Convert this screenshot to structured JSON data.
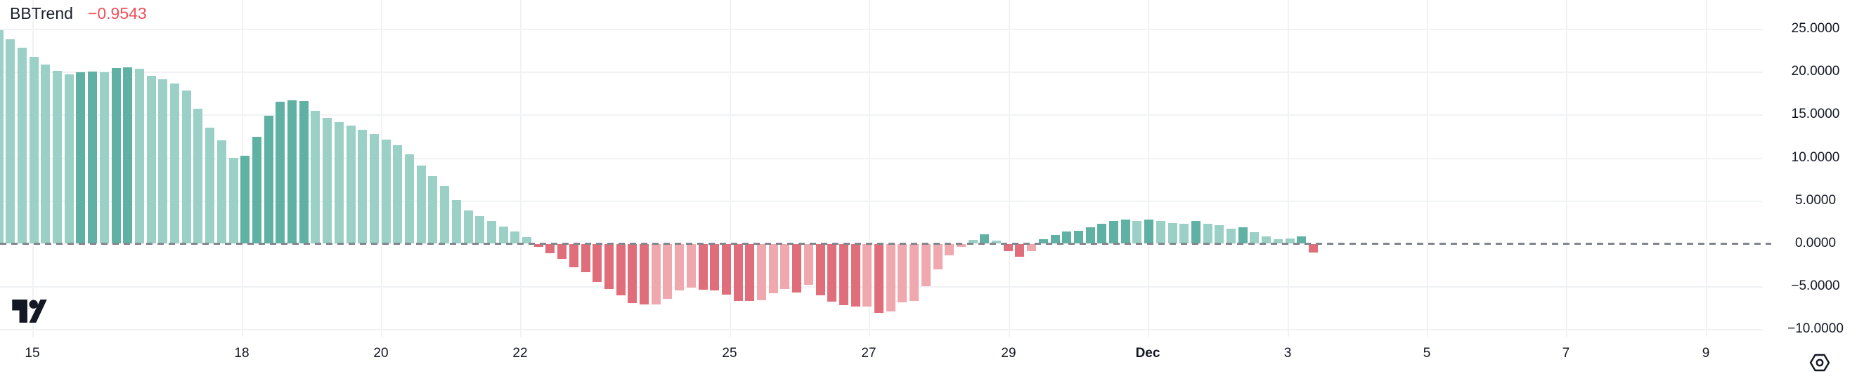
{
  "indicator": {
    "name": "BBTrend",
    "value": "−0.9543"
  },
  "colors": {
    "background": "#ffffff",
    "title_text": "#1a1f2b",
    "value_text": "#ef4e5b",
    "axis_text": "#131722",
    "grid": "#f0f2f4",
    "zero_line": "#83868e",
    "logo": "#141824",
    "bar_teal_strong": "#5fb1a4",
    "bar_teal_light": "#9ad0c6",
    "bar_red_strong": "#e06e7a",
    "bar_red_light": "#efa8ae"
  },
  "icons": {
    "settings": "hexagon-gear-icon",
    "logo": "tradingview-logo"
  },
  "chart_data": {
    "type": "bar",
    "title": "BBTrend",
    "current_value": -0.9543,
    "ylim": [
      -10.85,
      28.35
    ],
    "grid": true,
    "zero_line_style": "dashed",
    "legend_position": "top-left",
    "y_ticks": [
      {
        "value": 25,
        "label": "25.0000"
      },
      {
        "value": 20,
        "label": "20.0000"
      },
      {
        "value": 15,
        "label": "15.0000"
      },
      {
        "value": 10,
        "label": "10.0000"
      },
      {
        "value": 5,
        "label": "5.0000"
      },
      {
        "value": 0,
        "label": "0.0000"
      },
      {
        "value": -5,
        "label": "−5.0000"
      },
      {
        "value": -10,
        "label": "−10.0000"
      }
    ],
    "x_ticks": [
      {
        "label": "15",
        "day_offset": 0,
        "bold": false
      },
      {
        "label": "18",
        "day_offset": 3,
        "bold": false
      },
      {
        "label": "20",
        "day_offset": 5,
        "bold": false
      },
      {
        "label": "22",
        "day_offset": 7,
        "bold": false
      },
      {
        "label": "25",
        "day_offset": 10,
        "bold": false
      },
      {
        "label": "27",
        "day_offset": 12,
        "bold": false
      },
      {
        "label": "29",
        "day_offset": 14,
        "bold": false
      },
      {
        "label": "Dec",
        "day_offset": 16,
        "bold": true
      },
      {
        "label": "3",
        "day_offset": 18,
        "bold": false
      },
      {
        "label": "5",
        "day_offset": 20,
        "bold": false
      },
      {
        "label": "7",
        "day_offset": 22,
        "bold": false
      },
      {
        "label": "9",
        "day_offset": 24,
        "bold": false
      }
    ],
    "shade_codes": {
      "t": "teal-strong",
      "T": "teal-light",
      "r": "red-strong",
      "R": "red-light"
    },
    "bars": [
      [
        24.8,
        "T"
      ],
      [
        23.8,
        "T"
      ],
      [
        22.8,
        "T"
      ],
      [
        21.7,
        "T"
      ],
      [
        20.8,
        "T"
      ],
      [
        20.1,
        "T"
      ],
      [
        19.7,
        "T"
      ],
      [
        19.9,
        "t"
      ],
      [
        20.0,
        "t"
      ],
      [
        19.9,
        "T"
      ],
      [
        20.4,
        "t"
      ],
      [
        20.5,
        "t"
      ],
      [
        20.3,
        "T"
      ],
      [
        19.5,
        "T"
      ],
      [
        19.1,
        "T"
      ],
      [
        18.6,
        "T"
      ],
      [
        17.8,
        "T"
      ],
      [
        15.7,
        "T"
      ],
      [
        13.5,
        "T"
      ],
      [
        12.0,
        "T"
      ],
      [
        10.0,
        "T"
      ],
      [
        10.2,
        "t"
      ],
      [
        12.4,
        "t"
      ],
      [
        14.9,
        "t"
      ],
      [
        16.5,
        "t"
      ],
      [
        16.7,
        "t"
      ],
      [
        16.6,
        "t"
      ],
      [
        15.4,
        "T"
      ],
      [
        14.6,
        "T"
      ],
      [
        14.1,
        "T"
      ],
      [
        13.7,
        "T"
      ],
      [
        13.2,
        "T"
      ],
      [
        12.7,
        "T"
      ],
      [
        12.1,
        "T"
      ],
      [
        11.4,
        "T"
      ],
      [
        10.4,
        "T"
      ],
      [
        9.1,
        "T"
      ],
      [
        7.8,
        "T"
      ],
      [
        6.7,
        "T"
      ],
      [
        5.1,
        "T"
      ],
      [
        3.8,
        "T"
      ],
      [
        3.2,
        "T"
      ],
      [
        2.6,
        "T"
      ],
      [
        2.0,
        "T"
      ],
      [
        1.4,
        "T"
      ],
      [
        0.7,
        "T"
      ],
      [
        -0.3,
        "r"
      ],
      [
        -1.1,
        "r"
      ],
      [
        -1.7,
        "r"
      ],
      [
        -2.7,
        "r"
      ],
      [
        -3.3,
        "r"
      ],
      [
        -4.4,
        "r"
      ],
      [
        -5.2,
        "r"
      ],
      [
        -6.0,
        "r"
      ],
      [
        -6.9,
        "r"
      ],
      [
        -7.0,
        "r"
      ],
      [
        -7.0,
        "R"
      ],
      [
        -6.4,
        "R"
      ],
      [
        -5.4,
        "R"
      ],
      [
        -5.1,
        "R"
      ],
      [
        -5.3,
        "r"
      ],
      [
        -5.4,
        "r"
      ],
      [
        -5.9,
        "r"
      ],
      [
        -6.6,
        "r"
      ],
      [
        -6.6,
        "r"
      ],
      [
        -6.5,
        "R"
      ],
      [
        -5.7,
        "R"
      ],
      [
        -5.2,
        "R"
      ],
      [
        -5.6,
        "r"
      ],
      [
        -4.7,
        "R"
      ],
      [
        -6.0,
        "r"
      ],
      [
        -6.7,
        "r"
      ],
      [
        -7.1,
        "r"
      ],
      [
        -7.3,
        "r"
      ],
      [
        -7.3,
        "R"
      ],
      [
        -8.0,
        "r"
      ],
      [
        -7.8,
        "R"
      ],
      [
        -6.8,
        "R"
      ],
      [
        -6.6,
        "R"
      ],
      [
        -4.9,
        "R"
      ],
      [
        -2.9,
        "R"
      ],
      [
        -1.3,
        "R"
      ],
      [
        -0.3,
        "R"
      ],
      [
        0.4,
        "T"
      ],
      [
        1.1,
        "t"
      ],
      [
        0.3,
        "T"
      ],
      [
        -0.8,
        "r"
      ],
      [
        -1.5,
        "r"
      ],
      [
        -0.8,
        "R"
      ],
      [
        0.5,
        "t"
      ],
      [
        1.0,
        "t"
      ],
      [
        1.4,
        "t"
      ],
      [
        1.5,
        "t"
      ],
      [
        1.9,
        "t"
      ],
      [
        2.3,
        "t"
      ],
      [
        2.6,
        "t"
      ],
      [
        2.8,
        "t"
      ],
      [
        2.6,
        "T"
      ],
      [
        2.75,
        "t"
      ],
      [
        2.6,
        "T"
      ],
      [
        2.4,
        "T"
      ],
      [
        2.3,
        "T"
      ],
      [
        2.6,
        "t"
      ],
      [
        2.3,
        "T"
      ],
      [
        2.1,
        "T"
      ],
      [
        1.7,
        "T"
      ],
      [
        1.85,
        "t"
      ],
      [
        1.3,
        "T"
      ],
      [
        0.8,
        "T"
      ],
      [
        0.5,
        "T"
      ],
      [
        0.6,
        "T"
      ],
      [
        0.8,
        "t"
      ],
      [
        -0.9543,
        "r"
      ]
    ]
  }
}
